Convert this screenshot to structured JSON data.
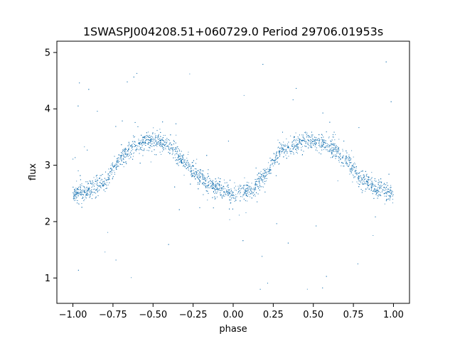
{
  "chart_data": {
    "type": "scatter",
    "title": "1SWASPJ004208.51+060729.0 Period 29706.01953s",
    "xlabel": "phase",
    "ylabel": "flux",
    "xlim": [
      -1.1,
      1.1
    ],
    "ylim": [
      0.55,
      5.2
    ],
    "xticks": [
      -1.0,
      -0.75,
      -0.5,
      -0.25,
      0.0,
      0.25,
      0.5,
      0.75,
      1.0
    ],
    "xtick_labels": [
      "−1.00",
      "−0.75",
      "−0.50",
      "−0.25",
      "0.00",
      "0.25",
      "0.50",
      "0.75",
      "1.00"
    ],
    "yticks": [
      1,
      2,
      3,
      4,
      5
    ],
    "ytick_labels": [
      "1",
      "2",
      "3",
      "4",
      "5"
    ],
    "grid": false,
    "point_color": "#1f77b4",
    "series": [
      {
        "phase_range": [
          -1.0,
          1.0
        ],
        "trend": {
          "x": [
            -1.0,
            -0.9,
            -0.8,
            -0.75,
            -0.7,
            -0.6,
            -0.5,
            -0.4,
            -0.3,
            -0.25,
            -0.2,
            -0.1,
            0.0,
            0.1,
            0.2,
            0.25,
            0.3,
            0.4,
            0.5,
            0.6,
            0.7,
            0.75,
            0.8,
            0.9,
            1.0
          ],
          "y": [
            2.5,
            2.55,
            2.7,
            2.9,
            3.15,
            3.35,
            3.45,
            3.35,
            3.05,
            2.9,
            2.75,
            2.6,
            2.5,
            2.55,
            2.8,
            3.05,
            3.25,
            3.4,
            3.45,
            3.35,
            3.1,
            2.95,
            2.75,
            2.6,
            2.5
          ]
        },
        "band_half_width": 0.2,
        "outlier_range": [
          0.75,
          4.9
        ]
      }
    ]
  }
}
